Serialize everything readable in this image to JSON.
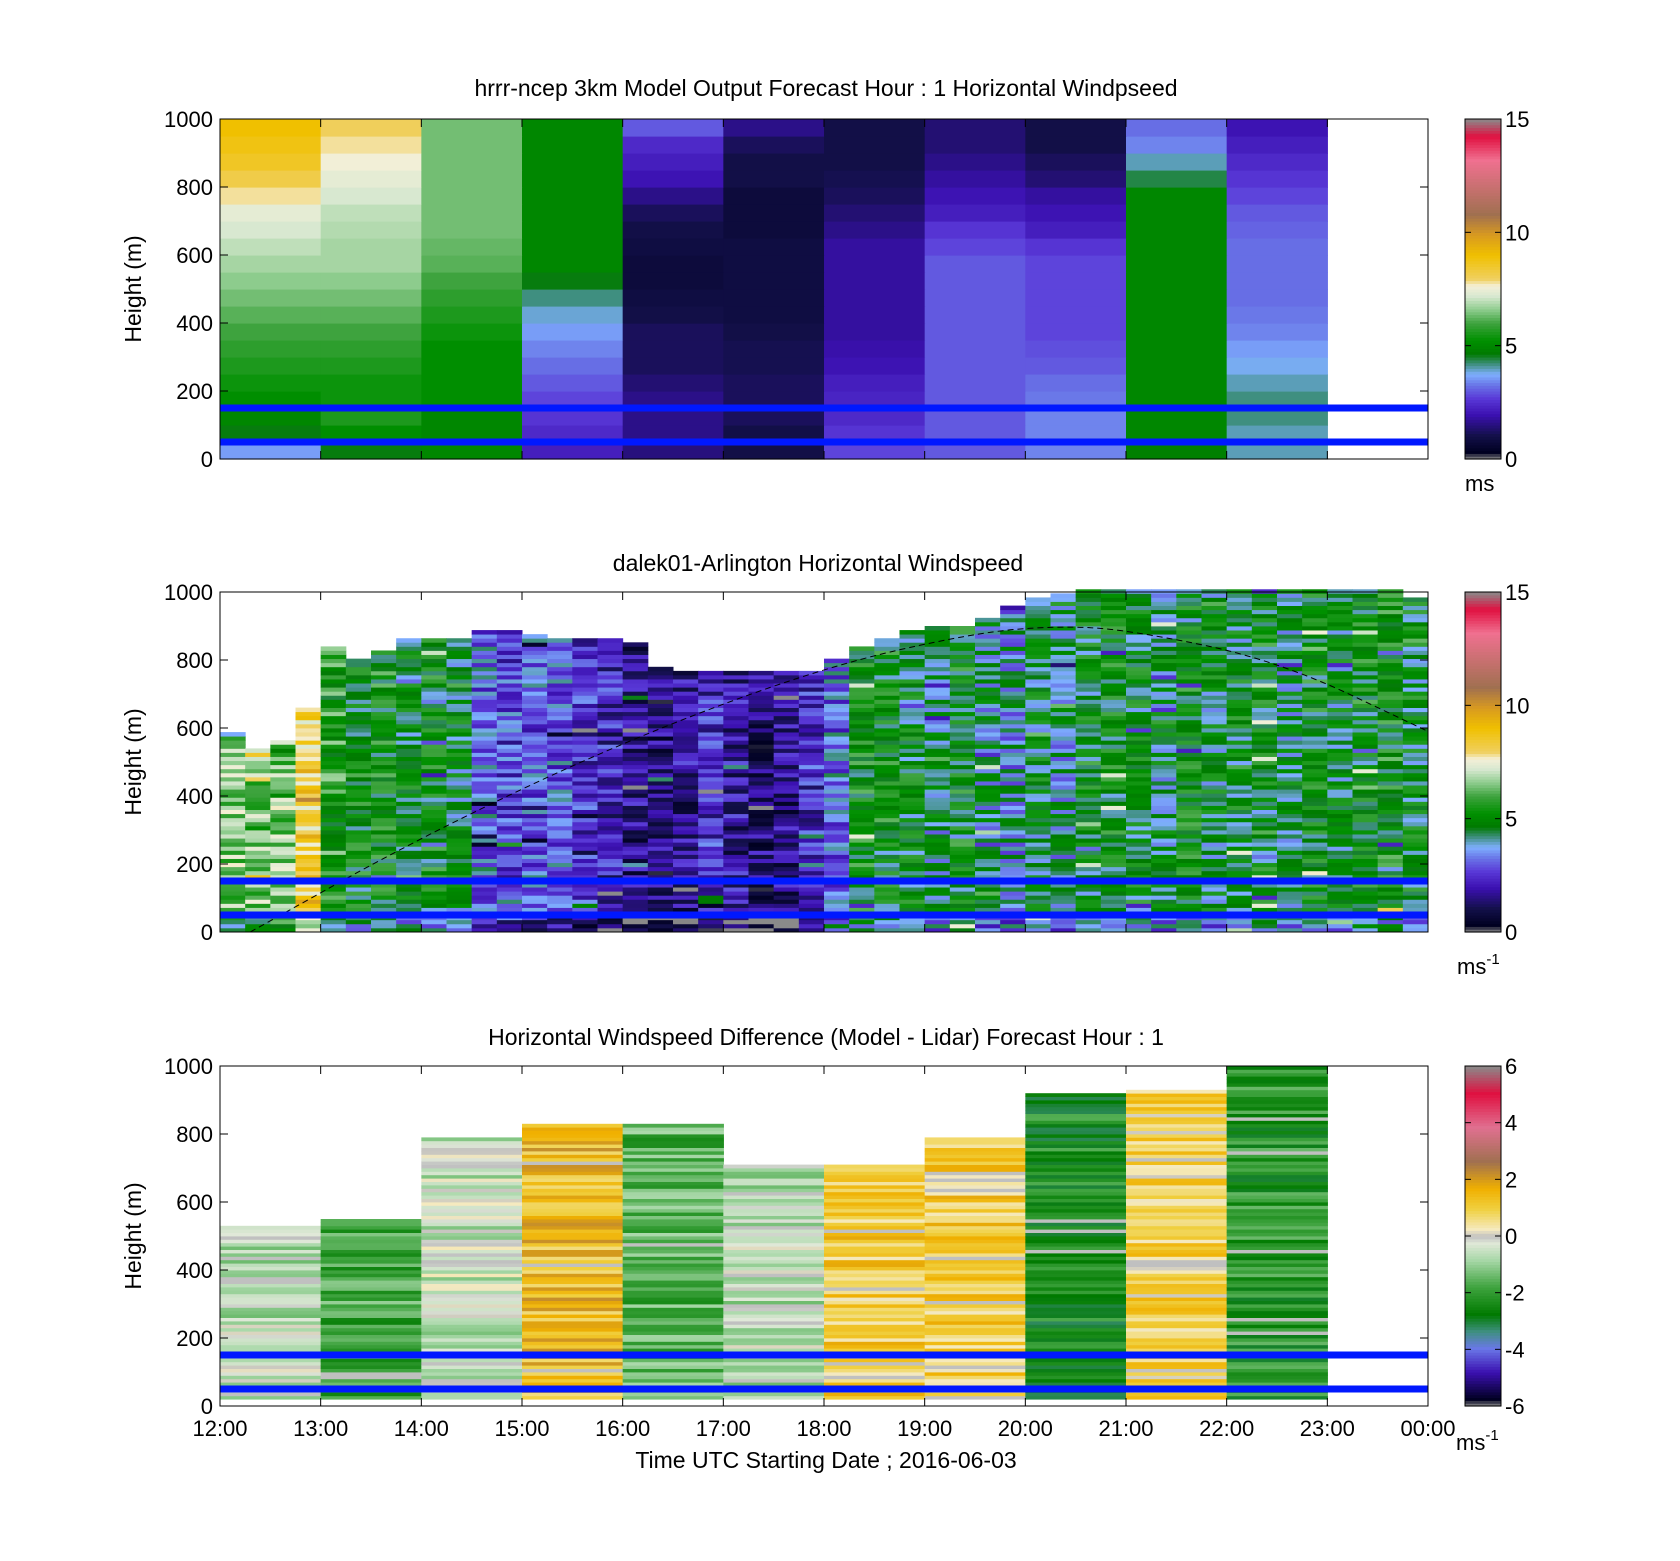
{
  "chart_data": [
    {
      "type": "heatmap",
      "title": "hrrr-ncep 3km Model Output   Forecast Hour : 1 Horizontal Windpseed",
      "ylabel": "Height (m)",
      "xlabel": "",
      "ylim": [
        0,
        1000
      ],
      "yticks": [
        "0",
        "200",
        "400",
        "600",
        "800",
        "1000"
      ],
      "colorbar": {
        "ticks": [
          "0",
          "5",
          "10",
          "15"
        ],
        "range": [
          0,
          15
        ],
        "unit": "ms",
        "unit_sup": ""
      },
      "x": [
        "12:00",
        "13:00",
        "14:00",
        "15:00",
        "16:00",
        "17:00",
        "18:00",
        "19:00",
        "20:00",
        "21:00",
        "22:00"
      ],
      "z_levels": [
        25,
        75,
        125,
        175,
        225,
        275,
        325,
        375,
        425,
        475,
        525,
        575,
        625,
        675,
        725,
        775,
        825,
        875,
        925,
        975
      ],
      "z_values": [
        [
          3.6,
          4.6,
          5.0,
          2.2,
          1.5,
          1.0,
          2.8,
          3.0,
          3.4,
          4.8,
          4.0
        ],
        [
          4.6,
          5.2,
          5.0,
          2.4,
          1.6,
          1.0,
          2.6,
          3.0,
          3.4,
          5.0,
          4.0
        ],
        [
          5.0,
          5.6,
          5.0,
          2.6,
          1.6,
          1.2,
          2.4,
          3.0,
          3.4,
          5.0,
          4.2
        ],
        [
          5.2,
          5.4,
          5.2,
          2.8,
          1.6,
          1.2,
          2.3,
          3.0,
          3.3,
          5.0,
          4.2
        ],
        [
          5.4,
          5.4,
          5.2,
          3.0,
          1.4,
          1.2,
          2.2,
          3.0,
          3.2,
          5.0,
          4.0
        ],
        [
          5.6,
          5.6,
          5.2,
          3.2,
          1.2,
          1.1,
          2.0,
          3.0,
          3.0,
          5.0,
          3.8
        ],
        [
          5.8,
          5.8,
          5.2,
          3.4,
          1.2,
          1.1,
          1.9,
          3.0,
          2.9,
          5.0,
          3.6
        ],
        [
          6.0,
          6.0,
          5.4,
          3.6,
          1.2,
          1.0,
          1.8,
          3.0,
          2.8,
          5.0,
          3.4
        ],
        [
          6.2,
          6.2,
          5.6,
          3.9,
          1.0,
          0.9,
          1.8,
          3.0,
          2.8,
          5.0,
          3.3
        ],
        [
          6.4,
          6.4,
          5.8,
          4.2,
          0.9,
          0.9,
          1.8,
          3.0,
          2.8,
          5.0,
          3.2
        ],
        [
          6.6,
          6.6,
          6.0,
          4.6,
          0.8,
          0.9,
          1.8,
          3.0,
          2.8,
          5.0,
          3.2
        ],
        [
          6.8,
          6.8,
          6.2,
          5.0,
          0.8,
          0.9,
          1.8,
          3.0,
          2.8,
          5.0,
          3.2
        ],
        [
          7.0,
          6.8,
          6.3,
          5.0,
          0.9,
          0.9,
          1.8,
          2.8,
          2.6,
          5.0,
          3.2
        ],
        [
          7.2,
          6.9,
          6.4,
          5.0,
          1.0,
          0.8,
          1.6,
          2.6,
          2.2,
          5.0,
          3.1
        ],
        [
          7.4,
          7.0,
          6.4,
          5.0,
          1.2,
          0.8,
          1.4,
          2.2,
          2.0,
          5.0,
          3.0
        ],
        [
          7.8,
          7.2,
          6.4,
          5.0,
          1.6,
          0.8,
          1.2,
          2.0,
          1.8,
          5.0,
          2.8
        ],
        [
          8.2,
          7.4,
          6.4,
          5.0,
          2.0,
          1.0,
          1.1,
          1.8,
          1.4,
          4.4,
          2.6
        ],
        [
          8.6,
          7.6,
          6.4,
          5.0,
          2.2,
          1.0,
          1.0,
          1.6,
          1.2,
          4.0,
          2.4
        ],
        [
          8.8,
          7.8,
          6.4,
          5.0,
          2.4,
          1.2,
          1.0,
          1.4,
          1.0,
          3.4,
          2.2
        ],
        [
          9.0,
          8.0,
          6.4,
          5.0,
          3.0,
          1.6,
          1.0,
          1.4,
          1.0,
          3.2,
          2.0
        ]
      ],
      "reference_lines_m": [
        50,
        150
      ]
    },
    {
      "type": "heatmap",
      "title": "dalek01-Arlington  Horizontal Windspeed",
      "ylabel": "Height (m)",
      "xlabel": "",
      "ylim": [
        0,
        1000
      ],
      "yticks": [
        "0",
        "200",
        "400",
        "600",
        "800",
        "1000"
      ],
      "colorbar": {
        "ticks": [
          "0",
          "5",
          "10",
          "15"
        ],
        "range": [
          0,
          15
        ],
        "unit": "ms",
        "unit_sup": "-1"
      },
      "x_hours_range": [
        12.0,
        23.85
      ],
      "column_width_h": 0.25,
      "column_mean_speed": [
        6.6,
        6.4,
        6.6,
        8.4,
        5.6,
        5.0,
        5.2,
        4.8,
        5.0,
        4.6,
        3.2,
        2.8,
        3.0,
        3.0,
        2.4,
        2.2,
        1.6,
        1.4,
        1.6,
        2.4,
        1.8,
        1.4,
        1.6,
        2.4,
        3.2,
        5.2,
        5.0,
        4.8,
        4.4,
        5.0,
        4.2,
        3.8,
        4.6,
        4.0,
        4.8,
        5.0,
        4.8,
        4.4,
        5.0,
        4.6,
        4.8,
        5.0,
        4.4,
        5.0,
        4.6,
        5.0,
        5.2,
        4.8
      ],
      "column_top_height_m": [
        580,
        530,
        560,
        650,
        840,
        800,
        820,
        860,
        860,
        860,
        880,
        880,
        870,
        860,
        860,
        860,
        850,
        780,
        760,
        760,
        760,
        760,
        760,
        760,
        800,
        830,
        860,
        880,
        900,
        900,
        920,
        960,
        980,
        990,
        1000,
        1000,
        1000,
        1000,
        1000,
        1000,
        1000,
        1000,
        1000,
        1000,
        1000,
        1000,
        1000,
        980
      ],
      "reference_lines_m": [
        50,
        150
      ],
      "curve_dashed": {
        "x_hours": [
          12.3,
          14.0,
          16.0,
          18.0,
          19.5,
          20.3,
          21.0,
          22.5,
          24.0
        ],
        "height_m": [
          0,
          280,
          560,
          780,
          880,
          900,
          890,
          800,
          590
        ]
      }
    },
    {
      "type": "heatmap",
      "title": "Horizontal Windspeed Difference (Model - Lidar) Forecast Hour : 1",
      "ylabel": "Height (m)",
      "xlabel": "Time UTC  Starting Date ; 2016-06-03",
      "ylim": [
        0,
        1000
      ],
      "yticks": [
        "0",
        "200",
        "400",
        "600",
        "800",
        "1000"
      ],
      "xticks": [
        "12:00",
        "13:00",
        "14:00",
        "15:00",
        "16:00",
        "17:00",
        "18:00",
        "19:00",
        "20:00",
        "21:00",
        "22:00",
        "23:00",
        "00:00"
      ],
      "colorbar": {
        "ticks": [
          "-6",
          "-4",
          "-2",
          "0",
          "2",
          "4",
          "6"
        ],
        "range": [
          -6,
          6
        ],
        "unit": "ms",
        "unit_sup": "-1"
      },
      "x": [
        "12:00",
        "13:00",
        "14:00",
        "15:00",
        "16:00",
        "17:00",
        "18:00",
        "19:00",
        "20:00",
        "21:00",
        "22:00"
      ],
      "column_top_height_m": [
        530,
        550,
        790,
        830,
        830,
        710,
        710,
        790,
        920,
        930,
        1000
      ],
      "column_mean_diff": [
        -0.6,
        -1.8,
        -0.5,
        1.4,
        -1.6,
        -0.6,
        1.0,
        1.0,
        -2.4,
        0.8,
        -2.2
      ],
      "reference_lines_m": [
        50,
        150
      ]
    }
  ],
  "colormaps": {
    "speed": [
      [
        0.0,
        "#8a8a8a"
      ],
      [
        0.02,
        "#000020"
      ],
      [
        0.07,
        "#13104a"
      ],
      [
        0.13,
        "#3b10b0"
      ],
      [
        0.18,
        "#5a3ad8"
      ],
      [
        0.22,
        "#6a78e8"
      ],
      [
        0.25,
        "#7fb0ff"
      ],
      [
        0.28,
        "#3f8f80"
      ],
      [
        0.31,
        "#007a00"
      ],
      [
        0.35,
        "#009000"
      ],
      [
        0.4,
        "#3ea33e"
      ],
      [
        0.44,
        "#8dcc8d"
      ],
      [
        0.48,
        "#d8e8d0"
      ],
      [
        0.51,
        "#f5f0d8"
      ],
      [
        0.53,
        "#f0d060"
      ],
      [
        0.6,
        "#f0c000"
      ],
      [
        0.66,
        "#d89a20"
      ],
      [
        0.72,
        "#a07050"
      ],
      [
        0.8,
        "#c87070"
      ],
      [
        0.88,
        "#f07090"
      ],
      [
        0.95,
        "#e01040"
      ],
      [
        1.0,
        "#8a8a8a"
      ]
    ],
    "diff": [
      [
        0.0,
        "#8a8a8a"
      ],
      [
        0.02,
        "#000020"
      ],
      [
        0.1,
        "#3b10b0"
      ],
      [
        0.17,
        "#6a78e8"
      ],
      [
        0.22,
        "#3f8f80"
      ],
      [
        0.27,
        "#007a00"
      ],
      [
        0.35,
        "#3ea33e"
      ],
      [
        0.43,
        "#a8d8a8"
      ],
      [
        0.48,
        "#e0e8d8"
      ],
      [
        0.5,
        "#c0c0c0"
      ],
      [
        0.52,
        "#f5eac0"
      ],
      [
        0.58,
        "#f0d040"
      ],
      [
        0.64,
        "#f0b000"
      ],
      [
        0.72,
        "#a07050"
      ],
      [
        0.82,
        "#e07090"
      ],
      [
        0.92,
        "#e01040"
      ],
      [
        1.0,
        "#8a8a8a"
      ]
    ]
  }
}
